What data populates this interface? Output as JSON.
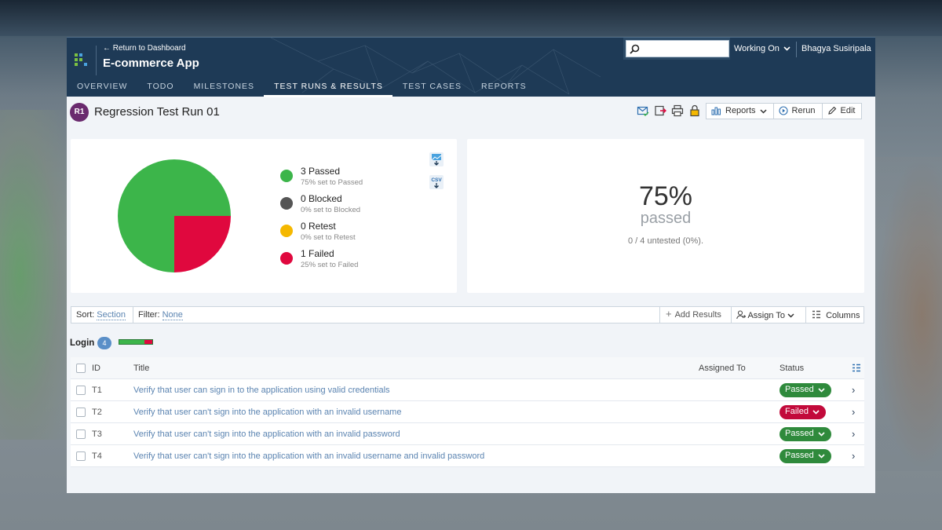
{
  "header": {
    "back_link": "← Return to Dashboard",
    "app_title": "E-commerce App",
    "search_placeholder": "",
    "working_on": "Working On",
    "user_name": "Bhagya Susiripala",
    "tabs": [
      {
        "label": "OVERVIEW",
        "active": false
      },
      {
        "label": "TODO",
        "active": false
      },
      {
        "label": "MILESTONES",
        "active": false
      },
      {
        "label": "TEST RUNS & RESULTS",
        "active": true
      },
      {
        "label": "TEST CASES",
        "active": false
      },
      {
        "label": "REPORTS",
        "active": false
      }
    ]
  },
  "run": {
    "badge": "R1",
    "title": "Regression Test Run 01",
    "buttons": {
      "reports": "Reports",
      "rerun": "Rerun",
      "edit": "Edit"
    }
  },
  "chart_data": {
    "type": "pie",
    "categories": [
      "Passed",
      "Blocked",
      "Retest",
      "Failed"
    ],
    "values": [
      3,
      0,
      0,
      1
    ],
    "colors": [
      "#3cb54a",
      "#555555",
      "#f5b800",
      "#e0083e"
    ]
  },
  "legend": [
    {
      "label": "3 Passed",
      "sub": "75% set to Passed",
      "color": "#3cb54a"
    },
    {
      "label": "0 Blocked",
      "sub": "0% set to Blocked",
      "color": "#555555"
    },
    {
      "label": "0 Retest",
      "sub": "0% set to Retest",
      "color": "#f5b800"
    },
    {
      "label": "1 Failed",
      "sub": "25% set to Failed",
      "color": "#e0083e"
    }
  ],
  "stats": {
    "percent": "75%",
    "label": "passed",
    "untested": "0 / 4 untested (0%)."
  },
  "toolbar": {
    "sort_label": "Sort:",
    "sort_value": "Section",
    "filter_label": "Filter:",
    "filter_value": "None",
    "add_results": "Add Results",
    "assign_to": "Assign To",
    "columns": "Columns"
  },
  "section": {
    "title": "Login",
    "count": "4",
    "passed_fraction": 0.75,
    "failed_fraction": 0.25
  },
  "table": {
    "headers": {
      "id": "ID",
      "title": "Title",
      "assigned": "Assigned To",
      "status": "Status"
    },
    "rows": [
      {
        "id": "T1",
        "title": "Verify that user can sign in to the application using valid credentials",
        "assigned": "",
        "status": "Passed",
        "status_color": "#2f8a3c"
      },
      {
        "id": "T2",
        "title": "Verify that user can't sign into the application with an invalid username",
        "assigned": "",
        "status": "Failed",
        "status_color": "#c20a3b"
      },
      {
        "id": "T3",
        "title": "Verify that user can't sign into the application with an invalid password",
        "assigned": "",
        "status": "Passed",
        "status_color": "#2f8a3c"
      },
      {
        "id": "T4",
        "title": "Verify that user can't sign into the application with an invalid username and invalid password",
        "assigned": "",
        "status": "Passed",
        "status_color": "#2f8a3c"
      }
    ]
  },
  "colors": {
    "header_bg": "#1e3a56",
    "accent_link": "#5b84b1",
    "passed": "#2f8a3c",
    "failed": "#c20a3b"
  }
}
